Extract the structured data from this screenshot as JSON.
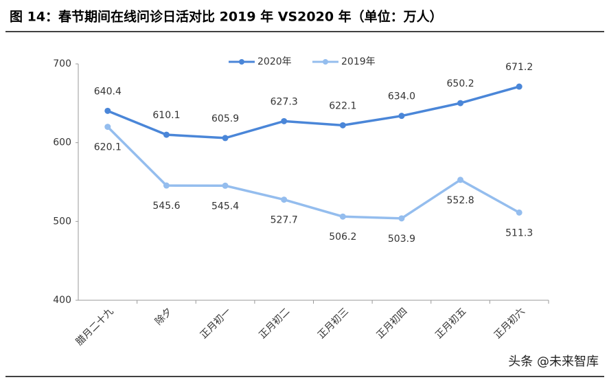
{
  "chart_data": {
    "type": "line",
    "title": "图 14：春节期间在线问诊日活对比 2019 年 VS2020 年（单位：万人）",
    "categories": [
      "腊月二十九",
      "除夕",
      "正月初一",
      "正月初二",
      "正月初三",
      "正月初四",
      "正月初五",
      "正月初六"
    ],
    "series": [
      {
        "name": "2020年",
        "color": "#4a86d8",
        "values": [
          640.4,
          610.1,
          605.9,
          627.3,
          622.1,
          634.0,
          650.2,
          671.2
        ],
        "value_labels": [
          "640.4",
          "610.1",
          "605.9",
          "627.3",
          "622.1",
          "634.0",
          "650.2",
          "671.2"
        ]
      },
      {
        "name": "2019年",
        "color": "#94bdee",
        "values": [
          620.1,
          545.6,
          545.4,
          527.7,
          506.2,
          503.9,
          552.8,
          511.3
        ],
        "value_labels": [
          "620.1",
          "545.6",
          "545.4",
          "527.7",
          "506.2",
          "503.9",
          "552.8",
          "511.3"
        ]
      }
    ],
    "ylim": [
      400,
      700
    ],
    "yticks": [
      400,
      500,
      600,
      700
    ],
    "grid": false,
    "legend": "top",
    "source": "头条 @未来智库"
  }
}
